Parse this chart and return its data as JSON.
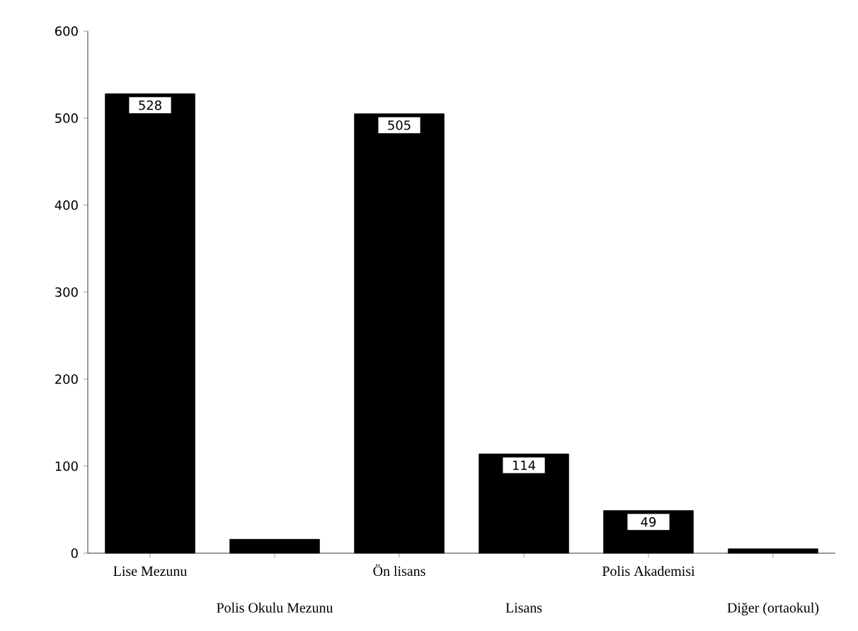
{
  "chart_data": {
    "type": "bar",
    "categories": [
      "Lise Mezunu",
      "Polis Okulu Mezunu",
      "Ön lisans",
      "Lisans",
      "Polis Akademisi",
      "Diğer (ortaokul)"
    ],
    "values": [
      528,
      16,
      505,
      114,
      49,
      5
    ],
    "value_labels": [
      "528",
      null,
      "505",
      "114",
      "49",
      null
    ],
    "color": "#000000",
    "ylim": [
      0,
      600
    ],
    "yticks": [
      0,
      100,
      200,
      300,
      400,
      500,
      600
    ],
    "grid": false
  }
}
